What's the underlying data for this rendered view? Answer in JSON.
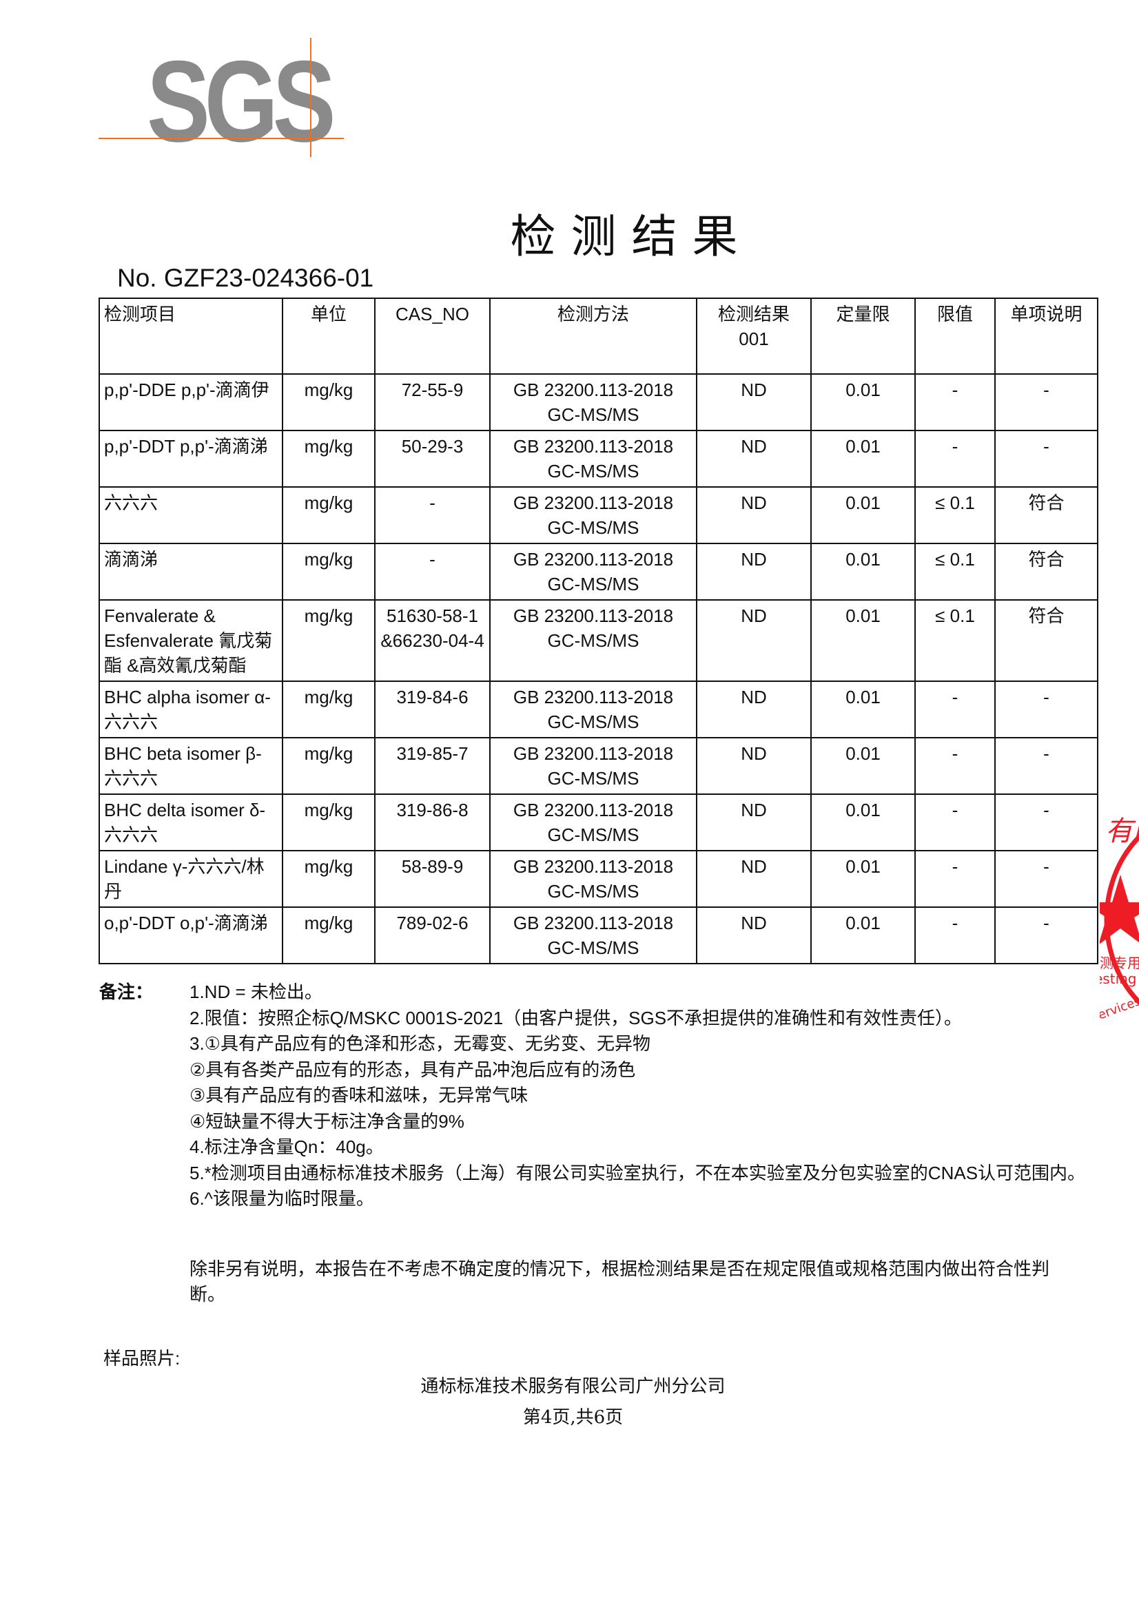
{
  "logo": {
    "text": "SGS",
    "accent_color": "#f07020",
    "text_color": "#8a8a8a"
  },
  "title": "检测结果",
  "report_no": "No. GZF23-024366-01",
  "table": {
    "headers": [
      "检测项目",
      "单位",
      "CAS_NO",
      "检测方法",
      "检测结果\n001",
      "定量限",
      "限值",
      "单项说明"
    ],
    "rows": [
      [
        "p,p'-DDE p,p'-滴滴伊",
        "mg/kg",
        "72-55-9",
        "GB 23200.113-2018\nGC-MS/MS",
        "ND",
        "0.01",
        "-",
        "-"
      ],
      [
        "p,p'-DDT p,p'-滴滴涕",
        "mg/kg",
        "50-29-3",
        "GB 23200.113-2018\nGC-MS/MS",
        "ND",
        "0.01",
        "-",
        "-"
      ],
      [
        "六六六",
        "mg/kg",
        "-",
        "GB 23200.113-2018\nGC-MS/MS",
        "ND",
        "0.01",
        "≤ 0.1",
        "符合"
      ],
      [
        "滴滴涕",
        "mg/kg",
        "-",
        "GB 23200.113-2018\nGC-MS/MS",
        "ND",
        "0.01",
        "≤ 0.1",
        "符合"
      ],
      [
        "Fenvalerate & Esfenvalerate 氰戊菊酯 &高效氰戊菊酯",
        "mg/kg",
        "51630-58-1 &66230-04-4",
        "GB 23200.113-2018\nGC-MS/MS",
        "ND",
        "0.01",
        "≤ 0.1",
        "符合"
      ],
      [
        "BHC alpha isomer α-六六六",
        "mg/kg",
        "319-84-6",
        "GB 23200.113-2018\nGC-MS/MS",
        "ND",
        "0.01",
        "-",
        "-"
      ],
      [
        "BHC beta isomer β-六六六",
        "mg/kg",
        "319-85-7",
        "GB 23200.113-2018\nGC-MS/MS",
        "ND",
        "0.01",
        "-",
        "-"
      ],
      [
        "BHC delta isomer δ-六六六",
        "mg/kg",
        "319-86-8",
        "GB 23200.113-2018\nGC-MS/MS",
        "ND",
        "0.01",
        "-",
        "-"
      ],
      [
        "Lindane γ-六六六/林丹",
        "mg/kg",
        "58-89-9",
        "GB 23200.113-2018\nGC-MS/MS",
        "ND",
        "0.01",
        "-",
        "-"
      ],
      [
        "o,p'-DDT o,p'-滴滴涕",
        "mg/kg",
        "789-02-6",
        "GB 23200.113-2018\nGC-MS/MS",
        "ND",
        "0.01",
        "-",
        "-"
      ]
    ]
  },
  "notes": {
    "label": "备注：",
    "items": [
      "1.ND = 未检出。",
      "2.限值：按照企标Q/MSKC 0001S-2021（由客户提供，SGS不承担提供的准确性和有效性责任）。",
      "3.①具有产品应有的色泽和形态，无霉变、无劣变、无异物",
      "②具有各类产品应有的形态，具有产品冲泡后应有的汤色",
      "③具有产品应有的香味和滋味，无异常气味",
      "④短缺量不得大于标注净含量的9%",
      "4.标注净含量Qn：40g。",
      "5.*检测项目由通标标准技术服务（上海）有限公司实验室执行，不在本实验室及分包实验室的CNAS认可范围内。",
      "6.^该限量为临时限量。"
    ]
  },
  "disclaimer": "除非另有说明，本报告在不考虑不确定度的情况下，根据检测结果是否在规定限值或规格范围内做出符合性判断。",
  "sample_photo_label": "样品照片:",
  "company": "通标标准技术服务有限公司广州分公司",
  "page_info": "第4页,共6页",
  "stamp": {
    "fragments": [
      "有限公",
      "测专用",
      "esting S",
      "ervices Co"
    ],
    "color": "#ee1c24"
  }
}
